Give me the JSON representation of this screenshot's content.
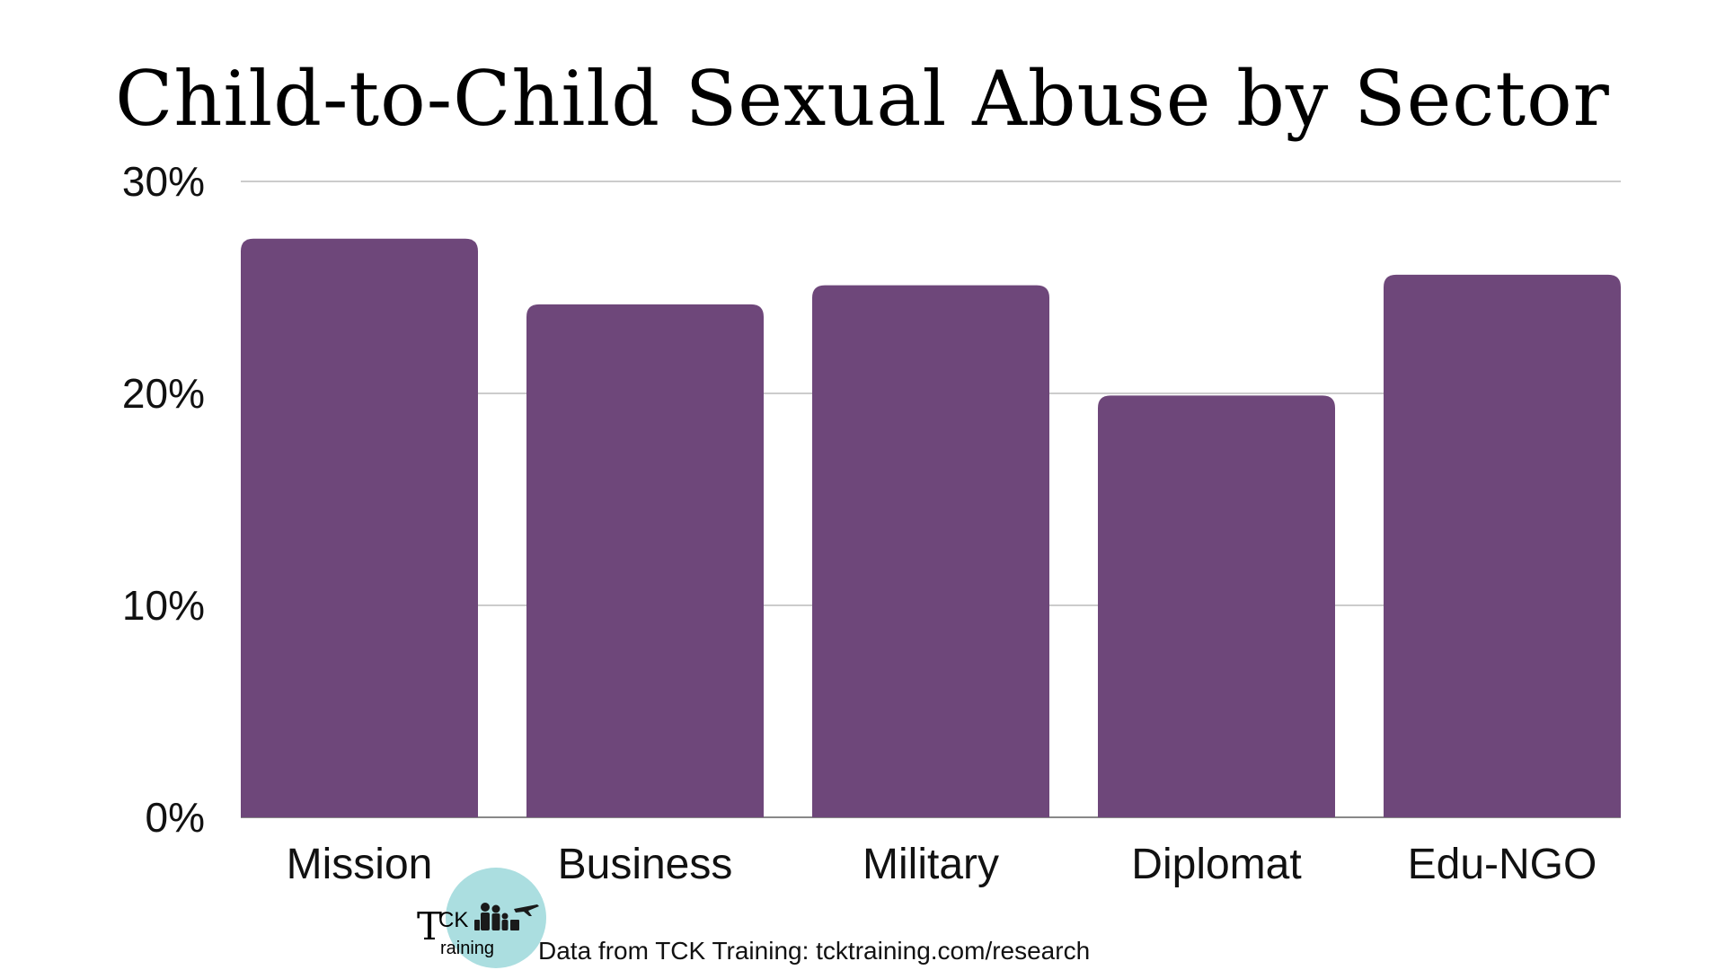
{
  "chart_data": {
    "type": "bar",
    "title": "Child-to-Child Sexual Abuse by Sector",
    "categories": [
      "Mission",
      "Business",
      "Military",
      "Diplomat",
      "Edu-NGO"
    ],
    "values": [
      27.3,
      24.2,
      25.1,
      19.9,
      25.6
    ],
    "ylim": [
      0,
      30
    ],
    "y_ticks": [
      "0%",
      "10%",
      "20%",
      "30%"
    ],
    "y_tick_values": [
      0,
      10,
      20,
      30
    ],
    "grid": true,
    "bar_color": "#6e477a",
    "grid_color": "#cccccc"
  },
  "logo": {
    "line1": "CK",
    "letter": "T",
    "line2": "raining",
    "circle_color": "#8fd3d6"
  },
  "source": "Data from TCK Training: tcktraining.com/research"
}
